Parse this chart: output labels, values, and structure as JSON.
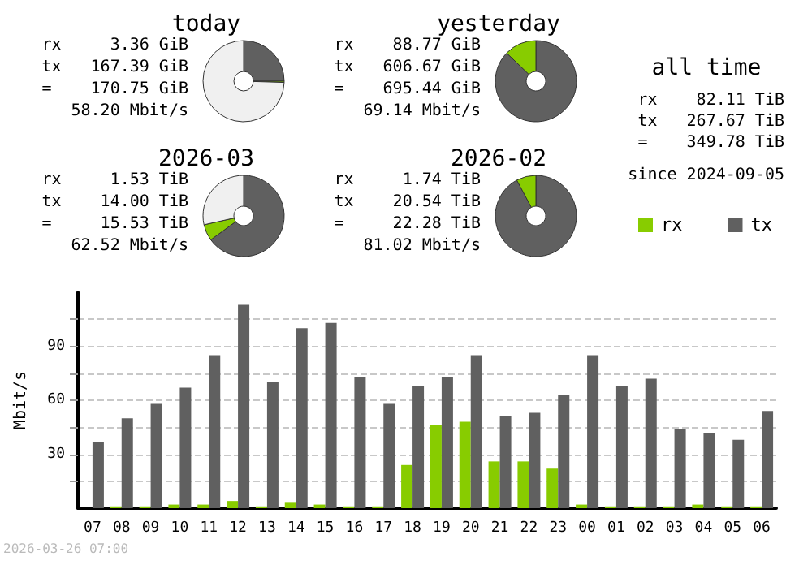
{
  "chart_data": [
    {
      "type": "donut",
      "title": "today",
      "categories": [
        null,
        null,
        null
      ],
      "values": [
        25,
        0.5,
        74.5
      ],
      "colors": [
        "#606060",
        "#88cc00",
        "#f0f0f0"
      ],
      "annotations": [
        "rx     3.36 GiB",
        "tx   167.39 GiB",
        "=    170.75 GiB",
        "58.20 Mbit/s"
      ]
    },
    {
      "type": "donut",
      "title": "yesterday",
      "categories": [
        null,
        null
      ],
      "values": [
        87.2,
        12.8
      ],
      "colors": [
        "#606060",
        "#88cc00"
      ],
      "annotations": [
        "rx    88.77 GiB",
        "tx   606.67 GiB",
        "=    695.44 GiB",
        "69.14 Mbit/s"
      ]
    },
    {
      "type": "other",
      "title": "all time",
      "annotations": [
        "rx    82.11 TiB",
        "tx   267.67 TiB",
        "=    349.78 TiB",
        "since 2024-09-05"
      ]
    },
    {
      "type": "donut",
      "title": "2026-03",
      "categories": [
        null,
        null,
        null
      ],
      "values": [
        65,
        6.5,
        28.5
      ],
      "colors": [
        "#606060",
        "#88cc00",
        "#f0f0f0"
      ],
      "annotations": [
        "rx     1.53 TiB",
        "tx    14.00 TiB",
        "=     15.53 TiB",
        "62.52 Mbit/s"
      ]
    },
    {
      "type": "donut",
      "title": "2026-02",
      "categories": [
        null,
        null
      ],
      "values": [
        92.2,
        7.8
      ],
      "colors": [
        "#606060",
        "#88cc00"
      ],
      "annotations": [
        "rx     1.74 TiB",
        "tx    20.54 TiB",
        "=     22.28 TiB",
        "81.02 Mbit/s"
      ]
    },
    {
      "type": "bar",
      "ylabel": "Mbit/s",
      "categories": [
        "07",
        "08",
        "09",
        "10",
        "11",
        "12",
        "13",
        "14",
        "15",
        "16",
        "17",
        "18",
        "19",
        "20",
        "21",
        "22",
        "23",
        "00",
        "01",
        "02",
        "03",
        "04",
        "05",
        "06"
      ],
      "series": [
        {
          "name": "rx",
          "color": "#88cc00",
          "values": [
            0,
            1,
            1,
            2,
            2,
            4,
            1,
            3,
            2,
            1,
            1,
            24,
            46,
            48,
            26,
            26,
            22,
            2,
            1,
            1,
            1,
            2,
            1,
            1
          ]
        },
        {
          "name": "tx",
          "color": "#606060",
          "values": [
            37,
            50,
            58,
            67,
            85,
            113,
            70,
            100,
            103,
            73,
            58,
            68,
            73,
            85,
            51,
            53,
            63,
            85,
            68,
            72,
            44,
            42,
            38,
            54
          ]
        }
      ],
      "ylim": [
        0,
        120
      ],
      "yticks": [
        {
          "value": 15,
          "label": null
        },
        30,
        {
          "value": 45,
          "label": null
        },
        60,
        {
          "value": 75,
          "label": null
        },
        90,
        {
          "value": 105,
          "label": null
        }
      ],
      "grid": "y",
      "legend": "top right",
      "annotations": [
        "2026-03-26 07:00"
      ]
    }
  ]
}
